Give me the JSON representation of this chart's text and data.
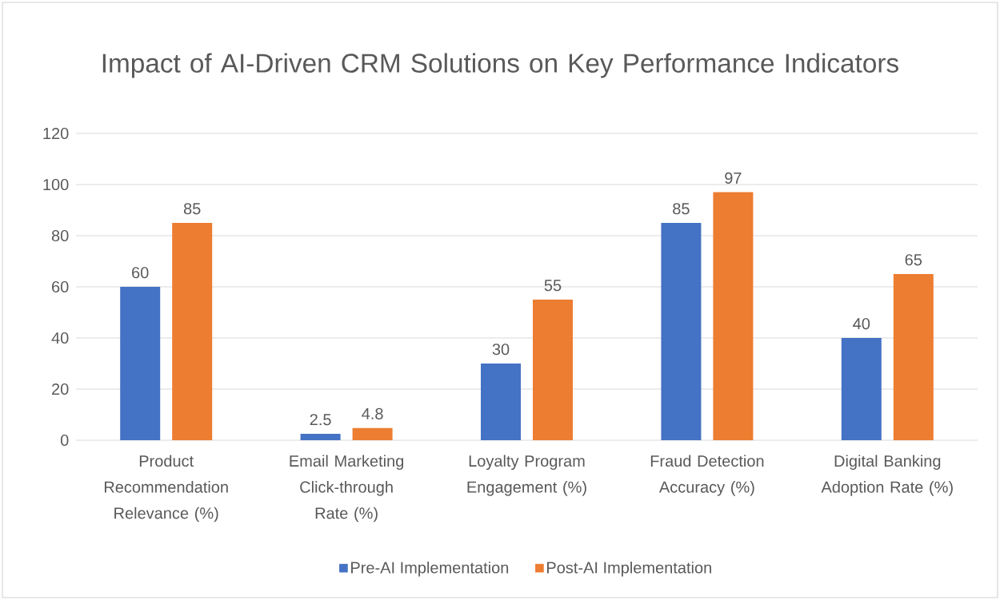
{
  "chart_data": {
    "type": "bar",
    "title": "Impact of AI-Driven CRM Solutions on Key Performance Indicators",
    "categories": [
      "Product Recommendation Relevance (%)",
      "Email Marketing Click-through Rate (%)",
      "Loyalty Program Engagement (%)",
      "Fraud Detection Accuracy (%)",
      "Digital Banking Adoption Rate (%)"
    ],
    "series": [
      {
        "name": "Pre-AI Implementation",
        "color": "#4472c4",
        "values": [
          60,
          2.5,
          30,
          85,
          40
        ]
      },
      {
        "name": "Post-AI Implementation",
        "color": "#ed7d31",
        "values": [
          85,
          4.8,
          55,
          97,
          65
        ]
      }
    ],
    "ylim": [
      0,
      120
    ],
    "yticks": [
      0,
      20,
      40,
      60,
      80,
      100,
      120
    ],
    "grid": "y",
    "legend": "bottom",
    "data_labels": true
  }
}
